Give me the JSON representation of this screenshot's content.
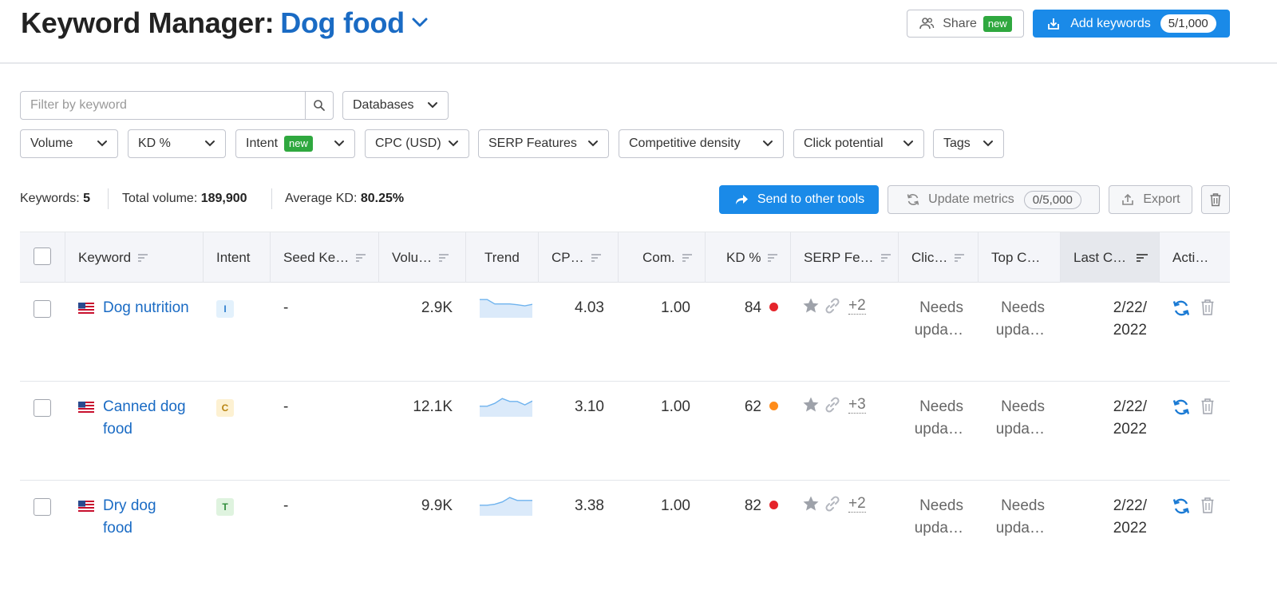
{
  "header": {
    "title": "Keyword Manager:",
    "project": "Dog food",
    "share_label": "Share",
    "share_badge": "new",
    "add_label": "Add keywords",
    "add_count": "5/1,000"
  },
  "filters": {
    "search_placeholder": "Filter by keyword",
    "databases": "Databases",
    "dropdowns": {
      "volume": "Volume",
      "kd": "KD %",
      "intent": "Intent",
      "intent_badge": "new",
      "cpc": "CPC (USD)",
      "serp": "SERP Features",
      "comp": "Competitive density",
      "click": "Click potential",
      "tags": "Tags"
    }
  },
  "stats": {
    "keywords_label": "Keywords:",
    "keywords_value": "5",
    "volume_label": "Total volume:",
    "volume_value": "189,900",
    "kd_label": "Average KD:",
    "kd_value": "80.25%"
  },
  "actions": {
    "send": "Send to other tools",
    "update": "Update metrics",
    "update_count": "0/5,000",
    "export": "Export"
  },
  "columns": {
    "keyword": "Keyword",
    "intent": "Intent",
    "seed": "Seed Ke…",
    "volume": "Volu…",
    "trend": "Trend",
    "cpc": "CP…",
    "com": "Com.",
    "kd": "KD %",
    "serp": "SERP Fe…",
    "click": "Clic…",
    "top": "Top C…",
    "last": "Last C…",
    "actions": "Acti…"
  },
  "rows": [
    {
      "keyword": "Dog nutrition",
      "intent": "I",
      "seed": "-",
      "volume": "2.9K",
      "cpc": "4.03",
      "com": "1.00",
      "kd": "84",
      "kd_color": "#e5242b",
      "serp_more": "+2",
      "click_1": "Needs",
      "click_2": "upda…",
      "top_1": "Needs",
      "top_2": "upda…",
      "last_1": "2/22/",
      "last_2": "2022",
      "trend": [
        0.95,
        0.95,
        0.72,
        0.72,
        0.72,
        0.68,
        0.62,
        0.7
      ]
    },
    {
      "keyword": "Canned dog food",
      "intent": "C",
      "seed": "-",
      "volume": "12.1K",
      "cpc": "3.10",
      "com": "1.00",
      "kd": "62",
      "kd_color": "#ff8c1a",
      "serp_more": "+3",
      "click_1": "Needs",
      "click_2": "upda…",
      "top_1": "Needs",
      "top_2": "upda…",
      "last_1": "2/22/",
      "last_2": "2022",
      "trend": [
        0.55,
        0.55,
        0.7,
        0.95,
        0.8,
        0.8,
        0.62,
        0.82
      ]
    },
    {
      "keyword": "Dry dog food",
      "intent": "T",
      "seed": "-",
      "volume": "9.9K",
      "cpc": "3.38",
      "com": "1.00",
      "kd": "82",
      "kd_color": "#e5242b",
      "serp_more": "+2",
      "click_1": "Needs",
      "click_2": "upda…",
      "top_1": "Needs",
      "top_2": "upda…",
      "last_1": "2/22/",
      "last_2": "2022",
      "trend": [
        0.55,
        0.55,
        0.6,
        0.72,
        0.95,
        0.8,
        0.8,
        0.8
      ]
    }
  ],
  "colors": {
    "accent": "#1a8ae8",
    "link": "#1a6bc4",
    "badge_green": "#2fa83f",
    "intent_I_bg": "#e3f1fc",
    "intent_I_fg": "#2f7fcf",
    "intent_C_bg": "#fdf1d2",
    "intent_C_fg": "#b88412",
    "intent_T_bg": "#dff3df",
    "intent_T_fg": "#2e8c3a"
  }
}
